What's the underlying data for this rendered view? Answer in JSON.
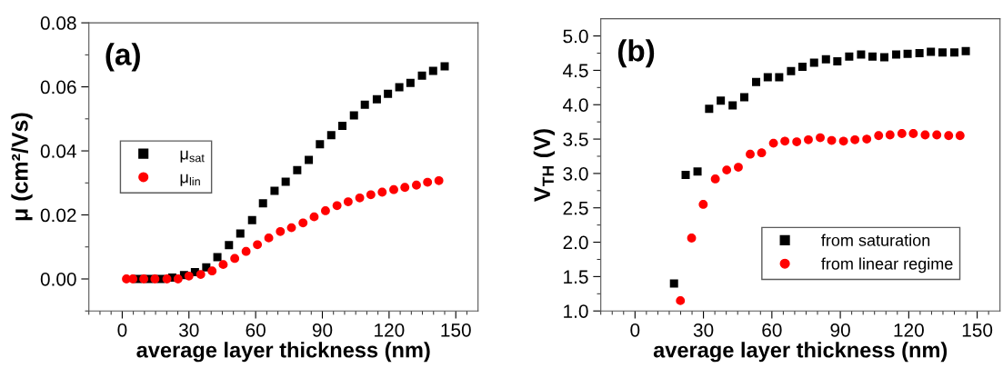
{
  "chart_data": [
    {
      "type": "scatter",
      "xlabel": "average layer thickness (nm)",
      "ylabel": "μ (cm²/Vs)",
      "annotations": [
        "(a)"
      ],
      "legend": "center left",
      "grid": false,
      "xlim": [
        -15,
        160
      ],
      "xticks": [
        {
          "value": -15,
          "label": null
        },
        {
          "value": -10,
          "label": null
        },
        {
          "value": -5,
          "label": null
        },
        0,
        {
          "value": 5,
          "label": null
        },
        {
          "value": 10,
          "label": null
        },
        {
          "value": 15,
          "label": null
        },
        {
          "value": 20,
          "label": null
        },
        {
          "value": 25,
          "label": null
        },
        30,
        {
          "value": 35,
          "label": null
        },
        {
          "value": 40,
          "label": null
        },
        {
          "value": 45,
          "label": null
        },
        {
          "value": 50,
          "label": null
        },
        {
          "value": 55,
          "label": null
        },
        60,
        {
          "value": 65,
          "label": null
        },
        {
          "value": 70,
          "label": null
        },
        {
          "value": 75,
          "label": null
        },
        {
          "value": 80,
          "label": null
        },
        {
          "value": 85,
          "label": null
        },
        90,
        {
          "value": 95,
          "label": null
        },
        {
          "value": 100,
          "label": null
        },
        {
          "value": 105,
          "label": null
        },
        {
          "value": 110,
          "label": null
        },
        {
          "value": 115,
          "label": null
        },
        120,
        {
          "value": 125,
          "label": null
        },
        {
          "value": 130,
          "label": null
        },
        {
          "value": 135,
          "label": null
        },
        {
          "value": 140,
          "label": null
        },
        {
          "value": 145,
          "label": null
        },
        150,
        {
          "value": 155,
          "label": null
        }
      ],
      "ylim": [
        -0.01,
        0.08
      ],
      "yticks": [
        {
          "value": -0.01,
          "label": null
        },
        {
          "value": 0,
          "label": "0.00"
        },
        {
          "value": 0.01,
          "label": null
        },
        {
          "value": 0.02,
          "label": "0.02"
        },
        {
          "value": 0.03,
          "label": null
        },
        {
          "value": 0.04,
          "label": "0.04"
        },
        {
          "value": 0.05,
          "label": null
        },
        {
          "value": 0.06,
          "label": "0.06"
        },
        {
          "value": 0.07,
          "label": null
        },
        {
          "value": 0.08,
          "label": "0.08"
        }
      ],
      "series": [
        {
          "name": "μ$_{sat}$",
          "color": "#000000",
          "marker": "square",
          "x": [
            7.1,
            12.1,
            17.3,
            22.5,
            27.8,
            32.7,
            37.8,
            42.8,
            48.0,
            53.1,
            58.4,
            63.3,
            68.5,
            73.5,
            78.7,
            83.9,
            88.9,
            94.0,
            99.0,
            104.2,
            109.1,
            114.5,
            119.5,
            124.6,
            129.6,
            134.8,
            139.8,
            145.0
          ],
          "values": [
            0,
            0,
            0,
            0.0004,
            0.0012,
            0.0021,
            0.0036,
            0.0068,
            0.0106,
            0.0142,
            0.0184,
            0.0236,
            0.0275,
            0.0304,
            0.034,
            0.0372,
            0.0421,
            0.0449,
            0.0478,
            0.0511,
            0.0544,
            0.0561,
            0.0578,
            0.0599,
            0.0612,
            0.0635,
            0.065,
            0.0664
          ]
        },
        {
          "name": "μ$_{lin}$",
          "color": "#ff0000",
          "marker": "circle",
          "x": [
            1.9,
            4.8,
            9.7,
            14.7,
            20.1,
            25.1,
            30.0,
            35.3,
            40.4,
            45.4,
            50.6,
            55.7,
            60.8,
            65.9,
            71.1,
            76.1,
            81.3,
            86.3,
            91.4,
            96.6,
            101.6,
            106.8,
            111.8,
            116.9,
            122.1,
            127.1,
            132.3,
            137.3,
            142.4
          ],
          "values": [
            0,
            0,
            0,
            0,
            0,
            0,
            0.0009,
            0.0014,
            0.0025,
            0.0045,
            0.0064,
            0.0086,
            0.0107,
            0.0128,
            0.0148,
            0.016,
            0.0175,
            0.0194,
            0.0213,
            0.0229,
            0.0241,
            0.0253,
            0.0263,
            0.0271,
            0.0279,
            0.0286,
            0.0293,
            0.0302,
            0.0307
          ]
        }
      ]
    },
    {
      "type": "scatter",
      "xlabel": "average layer thickness (nm)",
      "ylabel": "V$_{TH}$ (V)",
      "annotations": [
        "(b)"
      ],
      "legend": "bottom right",
      "grid": false,
      "xlim": [
        -15,
        160
      ],
      "xticks": [
        {
          "value": -15,
          "label": null
        },
        {
          "value": -10,
          "label": null
        },
        {
          "value": -5,
          "label": null
        },
        0,
        {
          "value": 5,
          "label": null
        },
        {
          "value": 10,
          "label": null
        },
        {
          "value": 15,
          "label": null
        },
        {
          "value": 20,
          "label": null
        },
        {
          "value": 25,
          "label": null
        },
        30,
        {
          "value": 35,
          "label": null
        },
        {
          "value": 40,
          "label": null
        },
        {
          "value": 45,
          "label": null
        },
        {
          "value": 50,
          "label": null
        },
        {
          "value": 55,
          "label": null
        },
        60,
        {
          "value": 65,
          "label": null
        },
        {
          "value": 70,
          "label": null
        },
        {
          "value": 75,
          "label": null
        },
        {
          "value": 80,
          "label": null
        },
        {
          "value": 85,
          "label": null
        },
        90,
        {
          "value": 95,
          "label": null
        },
        {
          "value": 100,
          "label": null
        },
        {
          "value": 105,
          "label": null
        },
        {
          "value": 110,
          "label": null
        },
        {
          "value": 115,
          "label": null
        },
        120,
        {
          "value": 125,
          "label": null
        },
        {
          "value": 130,
          "label": null
        },
        {
          "value": 135,
          "label": null
        },
        {
          "value": 140,
          "label": null
        },
        {
          "value": 145,
          "label": null
        },
        150,
        {
          "value": 155,
          "label": null
        }
      ],
      "ylim": [
        1.0,
        5.25
      ],
      "yticks": [
        {
          "value": 1.0,
          "label": "1.0"
        },
        {
          "value": 1.25,
          "label": null
        },
        {
          "value": 1.5,
          "label": "1.5"
        },
        {
          "value": 1.75,
          "label": null
        },
        {
          "value": 2.0,
          "label": "2.0"
        },
        {
          "value": 2.25,
          "label": null
        },
        {
          "value": 2.5,
          "label": "2.5"
        },
        {
          "value": 2.75,
          "label": null
        },
        {
          "value": 3.0,
          "label": "3.0"
        },
        {
          "value": 3.25,
          "label": null
        },
        {
          "value": 3.5,
          "label": "3.5"
        },
        {
          "value": 3.75,
          "label": null
        },
        {
          "value": 4.0,
          "label": "4.0"
        },
        {
          "value": 4.25,
          "label": null
        },
        {
          "value": 4.5,
          "label": "4.5"
        },
        {
          "value": 4.75,
          "label": null
        },
        {
          "value": 5.0,
          "label": "5.0"
        }
      ],
      "series": [
        {
          "name": "from saturation",
          "color": "#000000",
          "marker": "square",
          "x": [
            17.1,
            22.2,
            27.4,
            32.5,
            37.6,
            42.8,
            47.9,
            53.1,
            58.2,
            63.2,
            68.4,
            73.4,
            78.5,
            83.7,
            88.7,
            93.9,
            99.1,
            104.1,
            109.3,
            114.5,
            119.5,
            124.7,
            129.7,
            134.8,
            140.0,
            145.0
          ],
          "values": [
            1.4,
            2.98,
            3.03,
            3.94,
            4.06,
            3.99,
            4.11,
            4.33,
            4.4,
            4.4,
            4.49,
            4.55,
            4.61,
            4.66,
            4.63,
            4.7,
            4.73,
            4.7,
            4.69,
            4.73,
            4.74,
            4.75,
            4.77,
            4.76,
            4.76,
            4.78
          ]
        },
        {
          "name": "from linear regime",
          "color": "#ff0000",
          "marker": "circle",
          "x": [
            19.9,
            24.8,
            29.9,
            35.2,
            40.2,
            45.3,
            50.5,
            55.5,
            60.7,
            65.7,
            70.9,
            76.0,
            81.2,
            86.2,
            91.4,
            96.4,
            101.6,
            106.8,
            111.8,
            117.0,
            122.0,
            127.2,
            132.3,
            137.5,
            142.5
          ],
          "values": [
            1.15,
            2.06,
            2.55,
            2.92,
            3.05,
            3.09,
            3.28,
            3.3,
            3.44,
            3.47,
            3.46,
            3.49,
            3.52,
            3.48,
            3.47,
            3.49,
            3.5,
            3.55,
            3.56,
            3.58,
            3.58,
            3.56,
            3.56,
            3.55,
            3.55
          ]
        }
      ]
    }
  ]
}
